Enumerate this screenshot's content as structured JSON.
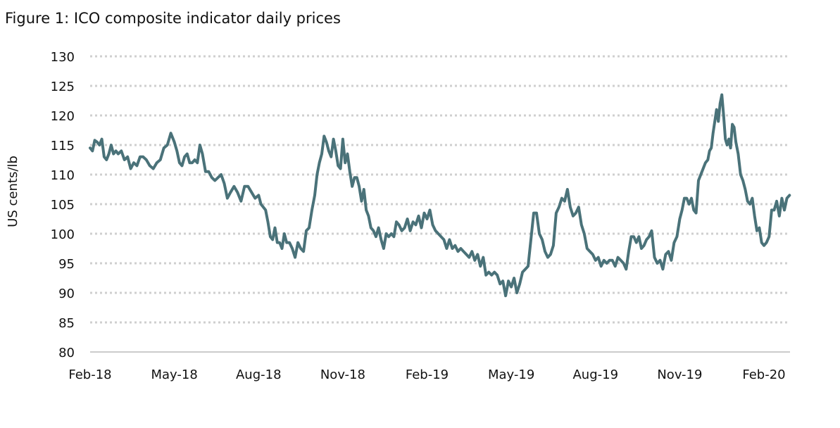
{
  "title": "Figure 1: ICO composite indicator daily prices",
  "chart_data": {
    "type": "line",
    "title": "Figure 1: ICO composite indicator daily prices",
    "xlabel": "",
    "ylabel": "US cents/lb",
    "ylim": [
      80,
      130
    ],
    "yticks": [
      80,
      85,
      90,
      95,
      100,
      105,
      110,
      115,
      120,
      125,
      130
    ],
    "xtick_labels": [
      "Feb-18",
      "May-18",
      "Aug-18",
      "Nov-18",
      "Feb-19",
      "May-19",
      "Aug-19",
      "Nov-19",
      "Feb-20"
    ],
    "grid": "horizontal dotted",
    "line_color": "#4a7279",
    "series": [
      {
        "month": "2018-02",
        "values": [
          114.5,
          114,
          115.8,
          115.5,
          115,
          116,
          113,
          112.5,
          113.5,
          115,
          113.5,
          114
        ]
      },
      {
        "month": "2018-03",
        "values": [
          113.5,
          114,
          112.5,
          113,
          111,
          112,
          111.5,
          113,
          113
        ]
      },
      {
        "month": "2018-04",
        "values": [
          112.5,
          111.5,
          111,
          112,
          112.5,
          114.5,
          115,
          117
        ]
      },
      {
        "month": "2018-05",
        "values": [
          115.5,
          114,
          112,
          111.5,
          113,
          113.5,
          112,
          112,
          112.5,
          112,
          115
        ]
      },
      {
        "month": "2018-06",
        "values": [
          113.5,
          110.5,
          110.5,
          109.5,
          109,
          109.5,
          110,
          108.5,
          106
        ]
      },
      {
        "month": "2018-07",
        "values": [
          107,
          108,
          107,
          105.5,
          108,
          108,
          107,
          106
        ]
      },
      {
        "month": "2018-08",
        "values": [
          106.5,
          105,
          104.5,
          104,
          102,
          99.5,
          99,
          101,
          98.5,
          98.5,
          97.5,
          100
        ]
      },
      {
        "month": "2018-09",
        "values": [
          98.5,
          98.5,
          97.5,
          96,
          98.5,
          97.5,
          97,
          100.5,
          101,
          104
        ]
      },
      {
        "month": "2018-10",
        "values": [
          106.5,
          110,
          112,
          113.5,
          116.5,
          115.5,
          114,
          113,
          116,
          114,
          111.5,
          111
        ]
      },
      {
        "month": "2018-11",
        "values": [
          116,
          112,
          113.5,
          110.5,
          108,
          109.5,
          109.5,
          108,
          105.5,
          107.5,
          104,
          103
        ]
      },
      {
        "month": "2018-12",
        "values": [
          101,
          100.5,
          99.5,
          101,
          99,
          97.5,
          100,
          99.5,
          100,
          99.5,
          102
        ]
      },
      {
        "month": "2019-01",
        "values": [
          101.5,
          100.5,
          101,
          102.5,
          100.5,
          102,
          101.5,
          103,
          101,
          103.5
        ]
      },
      {
        "month": "2019-02",
        "values": [
          102.5,
          104,
          101.5,
          100.5,
          100,
          99.5,
          99,
          97.5,
          99,
          97.5
        ]
      },
      {
        "month": "2019-03",
        "values": [
          98,
          97,
          97.5,
          97,
          96.5,
          96,
          97,
          95.5,
          96.5,
          94.5
        ]
      },
      {
        "month": "2019-04",
        "values": [
          96,
          93,
          93.5,
          93,
          93.5,
          93,
          91.5,
          92,
          89.5,
          92
        ]
      },
      {
        "month": "2019-05",
        "values": [
          91,
          92.5,
          90,
          91.5,
          93.5,
          94,
          94.5,
          99,
          103.5,
          103.5
        ]
      },
      {
        "month": "2019-06",
        "values": [
          100,
          99,
          97,
          96,
          96.5,
          98,
          103.5,
          104.5,
          106,
          105.5
        ]
      },
      {
        "month": "2019-07",
        "values": [
          107.5,
          104.5,
          103,
          103.5,
          104.5,
          101.5,
          100,
          97.5,
          97,
          96.5
        ]
      },
      {
        "month": "2019-08",
        "values": [
          95.5,
          96,
          94.5,
          95.5,
          95,
          95.5,
          95.5,
          94.5,
          96,
          95.5
        ]
      },
      {
        "month": "2019-09",
        "values": [
          95,
          94,
          97,
          99.5,
          99.5,
          98.5,
          99.5,
          97.5,
          98,
          99,
          99.5
        ]
      },
      {
        "month": "2019-10",
        "values": [
          100.5,
          96,
          95,
          95.5,
          94,
          96.5,
          97,
          95.5,
          98.5,
          99.5
        ]
      },
      {
        "month": "2019-11",
        "values": [
          102.5,
          104,
          106,
          106,
          105,
          106,
          104,
          103.5,
          109,
          110,
          111,
          112
        ]
      },
      {
        "month": "2019-12",
        "values": [
          112.5,
          114,
          114.5,
          117,
          119,
          121,
          119,
          122,
          123.5,
          120,
          116,
          115,
          116,
          114.5,
          118.5,
          118
        ]
      },
      {
        "month": "2020-01",
        "values": [
          115.5,
          113.5,
          110,
          109,
          107.5,
          105.5,
          105,
          106,
          103,
          100.5,
          101,
          98.5
        ]
      },
      {
        "month": "2020-02",
        "values": [
          98,
          98.5,
          99.5,
          104,
          104,
          105.5,
          103,
          106,
          104,
          106,
          106.5
        ]
      }
    ]
  }
}
